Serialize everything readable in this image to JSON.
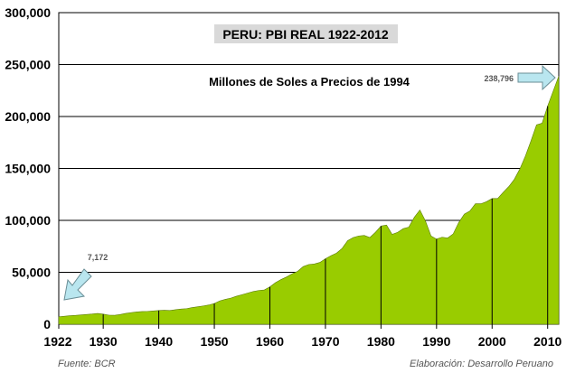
{
  "chart_data": {
    "type": "area",
    "title": "PERU: PBI REAL 1922-2012",
    "subtitle": "Millones de Soles a Precios de 1994",
    "ylim": [
      0,
      300000
    ],
    "yticks": [
      "0",
      "50,000",
      "100,000",
      "150,000",
      "200,000",
      "250,000",
      "300,000"
    ],
    "ytick_values": [
      0,
      50000,
      100000,
      150000,
      200000,
      250000,
      300000
    ],
    "xlim": [
      1922,
      2012
    ],
    "xticks": [
      "1922",
      "1930",
      "1940",
      "1950",
      "1960",
      "1970",
      "1980",
      "1990",
      "2000",
      "2010"
    ],
    "xtick_values": [
      1922,
      1930,
      1940,
      1950,
      1960,
      1970,
      1980,
      1990,
      2000,
      2010
    ],
    "grid": true,
    "fill_color": "#99cc00",
    "series": [
      {
        "x": [
          1922,
          1923,
          1924,
          1925,
          1926,
          1927,
          1928,
          1929,
          1930,
          1931,
          1932,
          1933,
          1934,
          1935,
          1936,
          1937,
          1938,
          1939,
          1940,
          1941,
          1942,
          1943,
          1944,
          1945,
          1946,
          1947,
          1948,
          1949,
          1950,
          1951,
          1952,
          1953,
          1954,
          1955,
          1956,
          1957,
          1958,
          1959,
          1960,
          1961,
          1962,
          1963,
          1964,
          1965,
          1966,
          1967,
          1968,
          1969,
          1970,
          1971,
          1972,
          1973,
          1974,
          1975,
          1976,
          1977,
          1978,
          1979,
          1980,
          1981,
          1982,
          1983,
          1984,
          1985,
          1986,
          1987,
          1988,
          1989,
          1990,
          1991,
          1992,
          1993,
          1994,
          1995,
          1996,
          1997,
          1998,
          1999,
          2000,
          2001,
          2002,
          2003,
          2004,
          2005,
          2006,
          2007,
          2008,
          2009,
          2010,
          2011,
          2012
        ],
        "values": [
          7172,
          7700,
          8200,
          8500,
          9000,
          9400,
          9800,
          10400,
          9700,
          8800,
          8600,
          9300,
          10400,
          11200,
          11800,
          12200,
          12400,
          12800,
          13200,
          13400,
          13200,
          14000,
          14600,
          15000,
          16000,
          16800,
          17600,
          18500,
          20000,
          22500,
          24000,
          25200,
          27000,
          28500,
          30000,
          31500,
          32500,
          33000,
          36000,
          40000,
          43000,
          45500,
          48500,
          51000,
          55500,
          57500,
          58000,
          59500,
          63000,
          66000,
          68500,
          73000,
          80500,
          83500,
          85000,
          85500,
          83500,
          88500,
          94500,
          95500,
          86500,
          88500,
          92000,
          93500,
          103000,
          110000,
          99500,
          85000,
          82000,
          83800,
          83000,
          87000,
          98000,
          106000,
          109000,
          116000,
          116000,
          118000,
          121000,
          121000,
          127000,
          132500,
          139500,
          149500,
          162000,
          176500,
          192000,
          193500,
          210000,
          224500,
          238796
        ]
      }
    ],
    "annotations": [
      {
        "label": "7,172",
        "x": 1922,
        "y": 7172
      },
      {
        "label": "238,796",
        "x": 2012,
        "y": 238796
      }
    ],
    "footer_left": "Fuente: BCR",
    "footer_right": "Elaboración: Desarrollo Peruano"
  }
}
